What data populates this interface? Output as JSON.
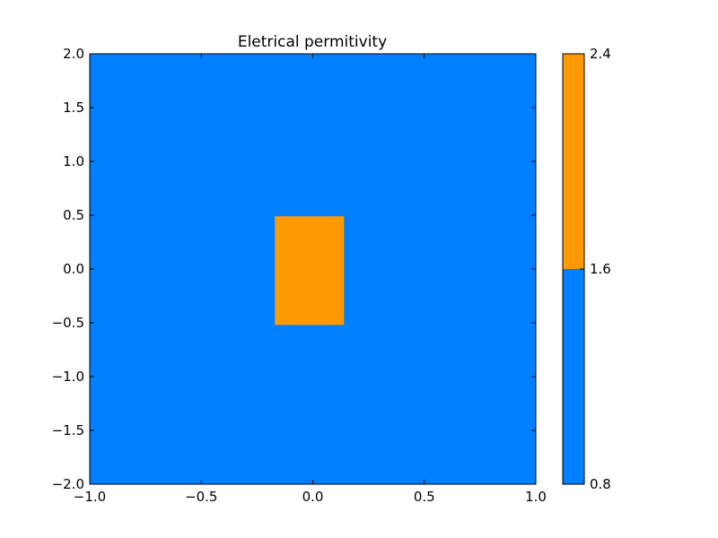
{
  "chart_data": {
    "type": "heatmap",
    "title": "Eletrical permitivity",
    "xlabel": "",
    "ylabel": "",
    "xlim": [
      -1.0,
      1.0
    ],
    "ylim": [
      -2.0,
      2.0
    ],
    "x_ticks": [
      -1.0,
      -0.5,
      0.0,
      0.5,
      1.0
    ],
    "x_tick_labels": [
      "−1.0",
      "−0.5",
      "0.0",
      "0.5",
      "1.0"
    ],
    "y_ticks": [
      2.0,
      1.5,
      1.0,
      0.5,
      0.0,
      -0.5,
      -1.0,
      -1.5,
      -2.0
    ],
    "y_tick_labels": [
      "2.0",
      "1.5",
      "1.0",
      "0.5",
      "0.0",
      "−0.5",
      "−1.0",
      "−1.5",
      "−2.0"
    ],
    "grid": false,
    "background_region": {
      "color": "#0080ff"
    },
    "regions": [
      {
        "x_range": [
          -0.17,
          0.14
        ],
        "y_range": [
          -0.52,
          0.49
        ],
        "color": "#ff9900"
      }
    ],
    "colorbar": {
      "ticks": [
        0.8,
        1.6,
        2.4
      ],
      "tick_labels": [
        "0.8",
        "1.6",
        "2.4"
      ],
      "bands": [
        {
          "from": 0.8,
          "to": 1.6,
          "color": "#0080ff"
        },
        {
          "from": 1.6,
          "to": 2.4,
          "color": "#ff9900"
        }
      ]
    }
  }
}
